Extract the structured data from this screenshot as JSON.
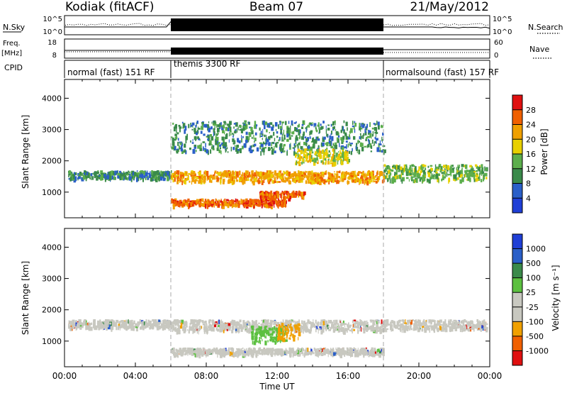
{
  "header": {
    "station": "Kodiak (fitACF)",
    "beam": "Beam 07",
    "date": "21/May/2012"
  },
  "aux_panels": {
    "nsky": {
      "label": "N.Sky",
      "tick_top": "10^5",
      "tick_bottom": "10^0",
      "right_label": "N.Search"
    },
    "freq": {
      "label_line1": "Freq.",
      "label_line2": "[MHz]",
      "tick_top": "18",
      "tick_bottom": "8",
      "right_tick_top": "60",
      "right_tick_bottom": "0",
      "right_label": "Nave"
    },
    "cpid": {
      "label": "CPID",
      "modes": [
        {
          "name": "normal (fast)",
          "id": "151",
          "suffix": "RF",
          "start_hour": 0,
          "end_hour": 6
        },
        {
          "name": "themis",
          "id": "3300",
          "suffix": "RF",
          "start_hour": 6,
          "end_hour": 18
        },
        {
          "name": "normalsound (fast)",
          "id": "157",
          "suffix": "RF",
          "start_hour": 18,
          "end_hour": 24
        }
      ]
    }
  },
  "colors": {
    "power": [
      "#1f3fd6",
      "#2a5fc8",
      "#3a8a4a",
      "#5cae4c",
      "#e8d000",
      "#f0a000",
      "#f06000",
      "#e01010"
    ],
    "velocity": [
      "#e01010",
      "#f06000",
      "#f0a000",
      "#c8c8c0",
      "#c8c8c0",
      "#5cc040",
      "#3a8a4a",
      "#2a5fc8",
      "#1f3fd6"
    ],
    "ground_scatter": "#c8c8c0"
  },
  "colorbars": {
    "power": {
      "label": "Power [dB]",
      "ticks": [
        "4",
        "8",
        "12",
        "16",
        "20",
        "24",
        "28"
      ]
    },
    "velocity": {
      "label": "Velocity [m s⁻¹]",
      "ticks": [
        "-1000",
        "-500",
        "-100",
        "-25",
        "25",
        "100",
        "500",
        "1000"
      ]
    }
  },
  "chart_data": [
    {
      "type": "heatmap",
      "title": "",
      "quantity": "Power",
      "xlabel": "Time UT",
      "ylabel": "Slant Range [km]",
      "xlim_hours": [
        0,
        24
      ],
      "ylim_km": [
        180,
        4600
      ],
      "ytick_labels": [
        "1000",
        "2000",
        "3000",
        "4000"
      ],
      "scatter_regions": [
        {
          "t0": 0.2,
          "t1": 6.0,
          "r0": 1450,
          "r1": 1700,
          "power_db": 10
        },
        {
          "t0": 6.0,
          "t1": 18.0,
          "r0": 1350,
          "r1": 1700,
          "power_db": 24
        },
        {
          "t0": 6.0,
          "t1": 12.5,
          "r0": 600,
          "r1": 800,
          "power_db": 26
        },
        {
          "t0": 11.0,
          "t1": 13.5,
          "r0": 850,
          "r1": 1050,
          "power_db": 28
        },
        {
          "t0": 6.0,
          "t1": 18.0,
          "r0": 2300,
          "r1": 3300,
          "power_db": 12
        },
        {
          "t0": 13.0,
          "t1": 16.0,
          "r0": 1950,
          "r1": 2400,
          "power_db": 20
        },
        {
          "t0": 18.0,
          "t1": 23.8,
          "r0": 1400,
          "r1": 1900,
          "power_db": 14
        }
      ]
    },
    {
      "type": "heatmap",
      "title": "",
      "quantity": "Velocity",
      "xlabel": "Time UT",
      "ylabel": "Slant Range [km]",
      "xlim_hours": [
        0,
        24
      ],
      "ylim_km": [
        180,
        4600
      ],
      "ytick_labels": [
        "1000",
        "2000",
        "3000",
        "4000"
      ],
      "scatter_regions": [
        {
          "t0": 0.2,
          "t1": 6.0,
          "r0": 1450,
          "r1": 1700,
          "velocity": 0
        },
        {
          "t0": 6.0,
          "t1": 18.0,
          "r0": 1350,
          "r1": 1700,
          "velocity": 0
        },
        {
          "t0": 10.5,
          "t1": 12.5,
          "r0": 1000,
          "r1": 1500,
          "velocity": 80
        },
        {
          "t0": 12.0,
          "t1": 13.2,
          "r0": 1100,
          "r1": 1600,
          "velocity": -300
        },
        {
          "t0": 6.0,
          "t1": 18.0,
          "r0": 600,
          "r1": 800,
          "velocity": 0
        },
        {
          "t0": 18.0,
          "t1": 23.8,
          "r0": 1400,
          "r1": 1700,
          "velocity": 0
        }
      ]
    }
  ],
  "xaxis": {
    "label": "Time UT",
    "tick_labels": [
      "00:00",
      "04:00",
      "08:00",
      "12:00",
      "16:00",
      "20:00",
      "00:00"
    ]
  }
}
